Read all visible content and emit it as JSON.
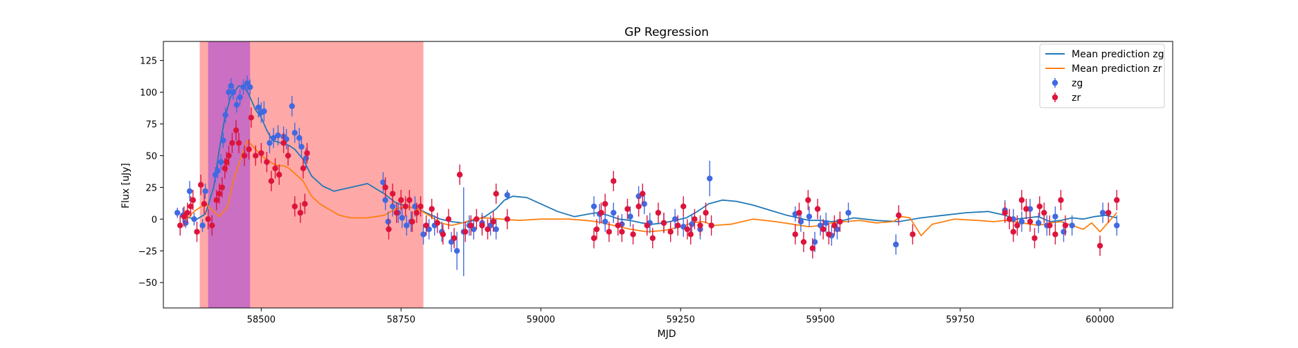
{
  "chart_data": {
    "type": "scatter",
    "title": "GP Regression",
    "xlabel": "MJD",
    "ylabel": "Flux [uJy]",
    "xlim": [
      58325,
      60130
    ],
    "ylim": [
      -70,
      140
    ],
    "x_ticks": [
      58500,
      58750,
      59000,
      59250,
      59500,
      59750,
      60000
    ],
    "y_ticks": [
      -50,
      -25,
      0,
      25,
      50,
      75,
      100,
      125
    ],
    "grid": false,
    "legend_position": "top-right",
    "shaded_regions": [
      {
        "x0": 58390,
        "x1": 58790,
        "color": "#ff0000",
        "opacity": 0.34
      },
      {
        "x0": 58405,
        "x1": 58480,
        "color": "#8a2be2",
        "opacity": 0.45
      }
    ],
    "series": [
      {
        "name": "Mean prediction zg",
        "kind": "line",
        "color": "#1f77b4",
        "x": [
          58360,
          58385,
          58400,
          58415,
          58425,
          58435,
          58445,
          58460,
          58470,
          58478,
          58490,
          58500,
          58510,
          58520,
          58535,
          58550,
          58560,
          58575,
          58590,
          58610,
          58630,
          58660,
          58690,
          58720,
          58740,
          58760,
          58780,
          58800,
          58820,
          58840,
          58860,
          58880,
          58900,
          58920,
          58935,
          58950,
          58975,
          59000,
          59030,
          59060,
          59085,
          59100,
          59120,
          59140,
          59160,
          59180,
          59200,
          59220,
          59240,
          59260,
          59280,
          59300,
          59325,
          59350,
          59380,
          59410,
          59440,
          59460,
          59480,
          59500,
          59520,
          59540,
          59560,
          59600,
          59640,
          59680,
          59720,
          59760,
          59800,
          59830,
          59850,
          59870,
          59890,
          59910,
          59930,
          59950,
          59970,
          59990,
          60010,
          60030
        ],
        "y": [
          2,
          0,
          4,
          25,
          55,
          80,
          96,
          105,
          104,
          98,
          86,
          80,
          70,
          62,
          60,
          58,
          55,
          47,
          34,
          26,
          22,
          25,
          28,
          20,
          13,
          10,
          8,
          4,
          0,
          -2,
          -3,
          -1,
          2,
          8,
          15,
          18,
          17,
          12,
          6,
          2,
          4,
          5,
          3,
          0,
          -1,
          -3,
          -4,
          -3,
          -1,
          1,
          6,
          12,
          15,
          14,
          11,
          7,
          3,
          1,
          -1,
          -1,
          -2,
          -1,
          1,
          -1,
          -2,
          1,
          3,
          5,
          6,
          3,
          0,
          1,
          2,
          -2,
          -1,
          1,
          0,
          2,
          3,
          1
        ]
      },
      {
        "name": "Mean prediction zr",
        "kind": "line",
        "color": "#ff7f0e",
        "x": [
          58360,
          58380,
          58400,
          58410,
          58425,
          58440,
          58450,
          58465,
          58475,
          58490,
          58500,
          58510,
          58520,
          58530,
          58540,
          58550,
          58560,
          58575,
          58590,
          58605,
          58620,
          58640,
          58660,
          58690,
          58720,
          58740,
          58760,
          58780,
          58800,
          58820,
          58840,
          58860,
          58880,
          58900,
          58930,
          58960,
          59000,
          59050,
          59080,
          59100,
          59130,
          59160,
          59190,
          59220,
          59250,
          59270,
          59290,
          59310,
          59340,
          59380,
          59420,
          59450,
          59480,
          59500,
          59520,
          59545,
          59570,
          59600,
          59630,
          59645,
          59660,
          59680,
          59700,
          59740,
          59780,
          59810,
          59830,
          59860,
          59890,
          59910,
          59930,
          59950,
          59970,
          59985,
          60000,
          60020,
          60030
        ],
        "y": [
          -3,
          6,
          12,
          8,
          2,
          10,
          30,
          50,
          62,
          55,
          50,
          47,
          44,
          42,
          42,
          40,
          36,
          30,
          18,
          12,
          8,
          3,
          1,
          1,
          3,
          8,
          10,
          8,
          3,
          -3,
          -5,
          -3,
          0,
          1,
          0,
          -1,
          0,
          0,
          -1,
          -2,
          -5,
          -8,
          -10,
          -9,
          -6,
          -3,
          -2,
          -5,
          -4,
          0,
          -2,
          -4,
          -6,
          -5,
          -3,
          -2,
          -1,
          -3,
          -2,
          2,
          1,
          -13,
          -4,
          0,
          -1,
          -2,
          -1,
          -3,
          -5,
          -3,
          -2,
          -5,
          -8,
          -3,
          -10,
          0,
          5
        ]
      },
      {
        "name": "zg",
        "kind": "errorbar",
        "color": "#4169e1",
        "x": [
          58350,
          58360,
          58365,
          58372,
          58380,
          58395,
          58400,
          58418,
          58422,
          58428,
          58432,
          58436,
          58442,
          58446,
          58450,
          58456,
          58462,
          58468,
          58475,
          58480,
          58495,
          58500,
          58505,
          58515,
          58522,
          58530,
          58540,
          58545,
          58555,
          58560,
          58568,
          58572,
          58580,
          58718,
          58722,
          58727,
          58735,
          58745,
          58752,
          58760,
          58768,
          58775,
          58790,
          58800,
          58810,
          58823,
          58840,
          58850,
          58862,
          58872,
          58880,
          58895,
          58910,
          58920,
          58940,
          59095,
          59105,
          59115,
          59130,
          59145,
          59160,
          59175,
          59185,
          59195,
          59220,
          59240,
          59255,
          59270,
          59285,
          59302,
          59455,
          59465,
          59480,
          59490,
          59500,
          59510,
          59520,
          59530,
          59550,
          59635,
          59830,
          59845,
          59860,
          59875,
          59890,
          59905,
          59920,
          59935,
          59950,
          60005,
          60030
        ],
        "y": [
          5,
          3,
          -3,
          22,
          0,
          -5,
          22,
          35,
          38,
          45,
          62,
          82,
          100,
          105,
          100,
          90,
          96,
          104,
          107,
          104,
          88,
          84,
          85,
          60,
          64,
          66,
          65,
          63,
          89,
          68,
          64,
          57,
          48,
          29,
          15,
          -2,
          10,
          5,
          1,
          -5,
          -2,
          10,
          -12,
          -8,
          -5,
          -10,
          -18,
          -25,
          -10,
          -5,
          -8,
          -3,
          -5,
          -8,
          19,
          10,
          4,
          -2,
          5,
          -4,
          2,
          18,
          12,
          -3,
          -3,
          0,
          -6,
          -4,
          -8,
          32,
          4,
          -2,
          2,
          -18,
          -5,
          -3,
          -13,
          -8,
          5,
          -20,
          7,
          0,
          -2,
          8,
          -3,
          -5,
          2,
          -10,
          -5,
          5,
          -5
        ],
        "err": [
          4,
          6,
          4,
          8,
          5,
          5,
          6,
          6,
          6,
          6,
          6,
          6,
          6,
          6,
          6,
          6,
          6,
          6,
          6,
          6,
          8,
          8,
          8,
          8,
          8,
          8,
          8,
          8,
          8,
          8,
          8,
          8,
          8,
          8,
          8,
          8,
          8,
          8,
          8,
          8,
          8,
          8,
          8,
          8,
          8,
          8,
          8,
          15,
          35,
          8,
          8,
          8,
          8,
          8,
          4,
          8,
          8,
          8,
          8,
          8,
          8,
          8,
          8,
          8,
          8,
          8,
          8,
          8,
          8,
          14,
          6,
          8,
          8,
          8,
          8,
          8,
          8,
          8,
          8,
          8,
          8,
          8,
          8,
          8,
          8,
          8,
          8,
          8,
          8,
          8,
          8
        ]
      },
      {
        "name": "zr",
        "kind": "errorbar",
        "color": "#dc143c",
        "x": [
          58355,
          58362,
          58368,
          58374,
          58378,
          58385,
          58392,
          58398,
          58405,
          58412,
          58420,
          58425,
          58430,
          58435,
          58438,
          58442,
          58448,
          58455,
          58460,
          58470,
          58478,
          58482,
          58490,
          58500,
          58510,
          58518,
          58525,
          58532,
          58540,
          58548,
          58560,
          58570,
          58575,
          58578,
          58582,
          58722,
          58728,
          58735,
          58742,
          58750,
          58758,
          58765,
          58770,
          58778,
          58785,
          58795,
          58805,
          58815,
          58825,
          58835,
          58845,
          58855,
          58865,
          58875,
          58885,
          58895,
          58905,
          58915,
          58920,
          58940,
          59095,
          59100,
          59108,
          59115,
          59122,
          59130,
          59138,
          59145,
          59155,
          59165,
          59175,
          59182,
          59190,
          59200,
          59210,
          59220,
          59232,
          59245,
          59255,
          59262,
          59268,
          59275,
          59285,
          59295,
          59305,
          59455,
          59462,
          59470,
          59478,
          59486,
          59495,
          59505,
          59515,
          59525,
          59535,
          59640,
          59665,
          59830,
          59838,
          59845,
          59852,
          59860,
          59868,
          59875,
          59883,
          59892,
          59900,
          59910,
          59920,
          59930,
          59938,
          60000,
          60015,
          60030
        ],
        "y": [
          -5,
          2,
          5,
          10,
          15,
          -10,
          27,
          12,
          0,
          -5,
          15,
          20,
          25,
          40,
          45,
          50,
          60,
          70,
          60,
          50,
          55,
          80,
          50,
          52,
          45,
          30,
          40,
          35,
          60,
          50,
          10,
          5,
          40,
          12,
          52,
          25,
          -8,
          20,
          5,
          15,
          10,
          15,
          -2,
          5,
          10,
          -5,
          8,
          -3,
          -12,
          0,
          -15,
          35,
          -10,
          -5,
          0,
          -5,
          -8,
          -2,
          20,
          0,
          -15,
          -8,
          5,
          12,
          -10,
          30,
          -5,
          -10,
          8,
          -12,
          10,
          20,
          -5,
          -15,
          5,
          -3,
          -10,
          -5,
          10,
          -8,
          -12,
          0,
          -5,
          5,
          -5,
          -12,
          5,
          -18,
          15,
          -23,
          8,
          -8,
          -12,
          -5,
          -2,
          3,
          -12,
          5,
          0,
          -10,
          -5,
          15,
          8,
          -2,
          -15,
          10,
          5,
          -5,
          -12,
          15,
          -5,
          -21,
          5,
          15
        ],
        "err": [
          8,
          8,
          8,
          8,
          8,
          8,
          8,
          8,
          8,
          8,
          8,
          8,
          8,
          8,
          8,
          8,
          8,
          8,
          8,
          8,
          8,
          8,
          8,
          8,
          8,
          8,
          8,
          8,
          8,
          8,
          8,
          8,
          8,
          8,
          8,
          8,
          8,
          8,
          8,
          8,
          8,
          8,
          8,
          8,
          8,
          8,
          8,
          8,
          8,
          8,
          8,
          8,
          8,
          8,
          8,
          8,
          8,
          8,
          8,
          8,
          8,
          8,
          8,
          8,
          8,
          8,
          8,
          8,
          8,
          8,
          8,
          8,
          8,
          8,
          8,
          8,
          8,
          8,
          8,
          8,
          8,
          8,
          8,
          8,
          8,
          8,
          8,
          8,
          8,
          8,
          8,
          8,
          8,
          8,
          8,
          8,
          8,
          8,
          8,
          8,
          8,
          8,
          8,
          8,
          8,
          8,
          8,
          8,
          8,
          8,
          8,
          8,
          8,
          8
        ]
      }
    ]
  }
}
